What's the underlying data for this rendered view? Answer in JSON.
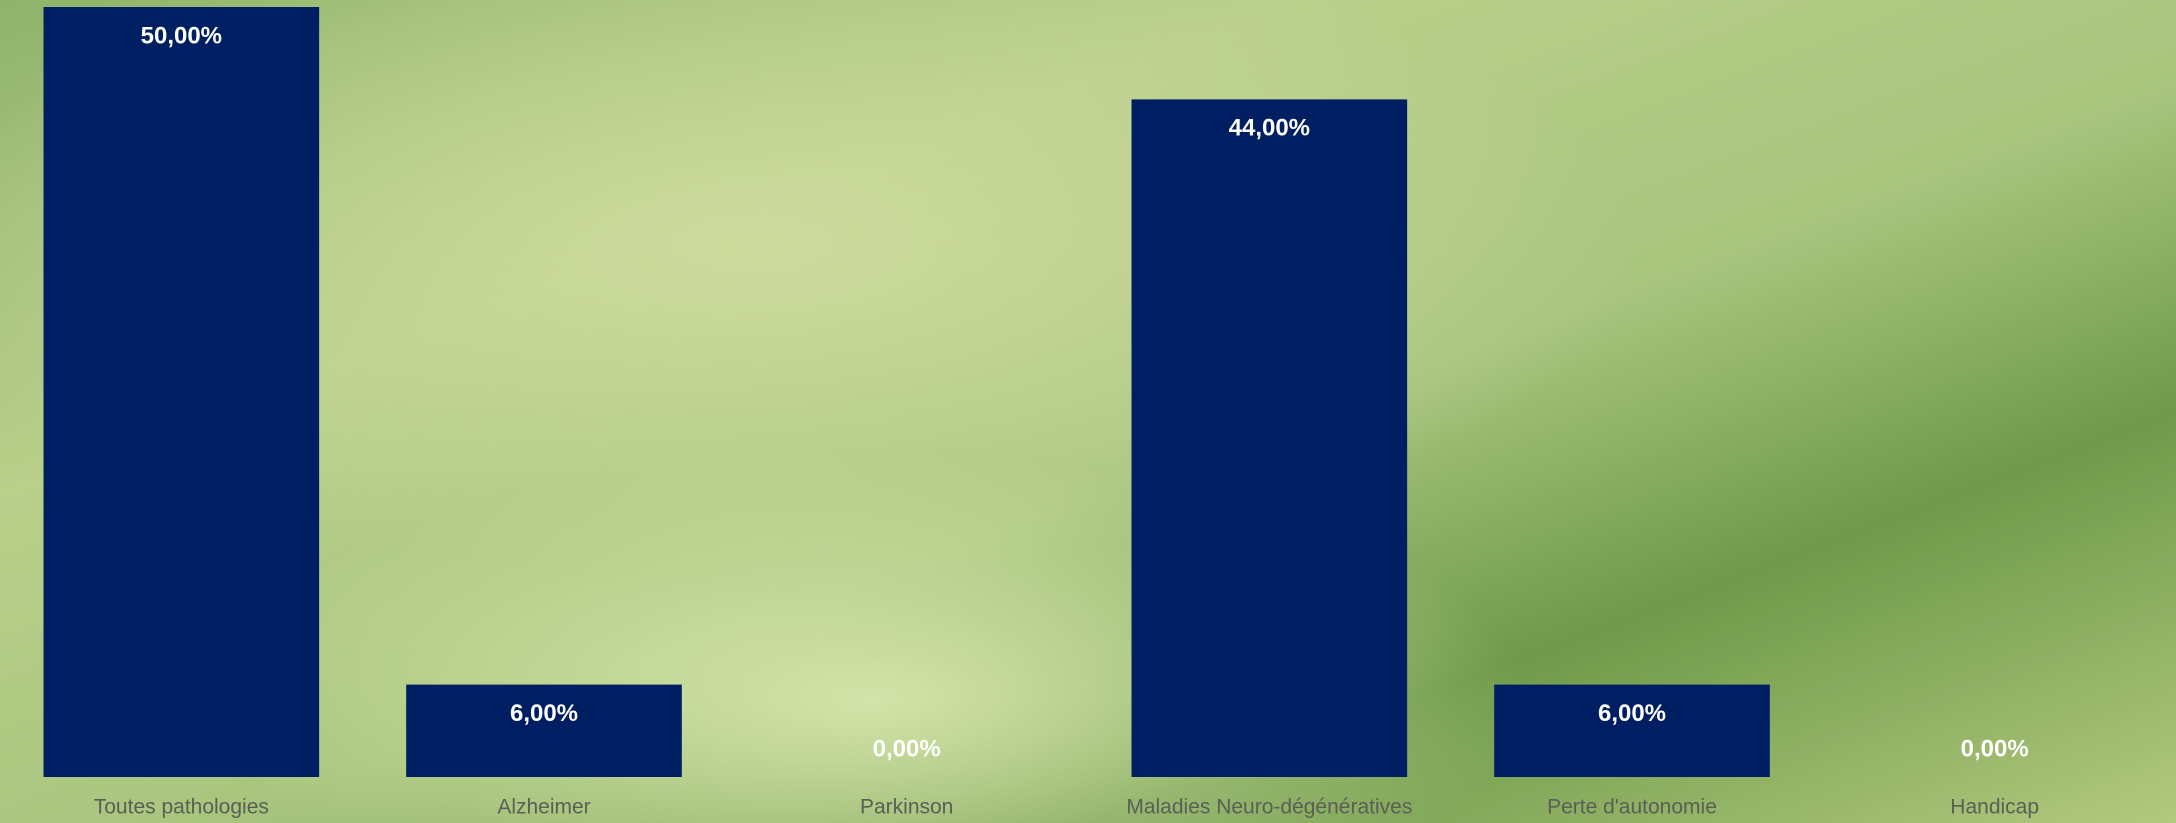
{
  "chart_data": {
    "type": "bar",
    "categories": [
      "Toutes pathologies",
      "Alzheimer",
      "Parkinson",
      "Maladies Neuro-dégénératives",
      "Perte d'autonomie",
      "Handicap"
    ],
    "values": [
      50,
      6,
      0,
      44,
      6,
      0
    ],
    "value_labels": [
      "50,00%",
      "6,00%",
      "0,00%",
      "44,00%",
      "6,00%",
      "0,00%"
    ],
    "color": "#001f63",
    "ylim": [
      0,
      50
    ]
  }
}
